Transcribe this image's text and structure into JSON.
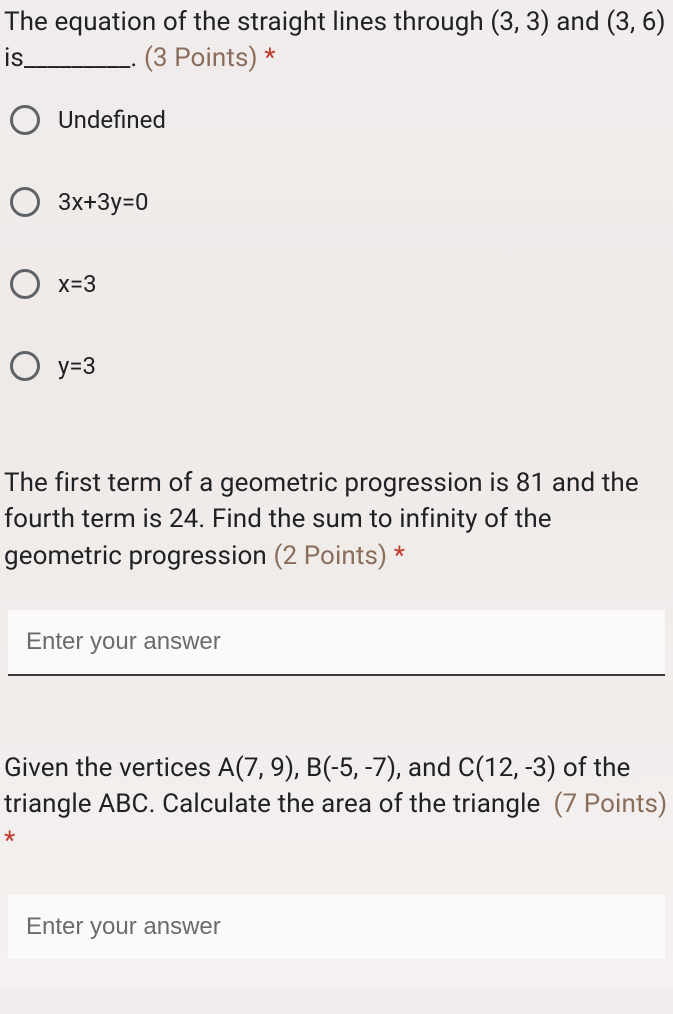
{
  "colors": {
    "text": "#202124",
    "points": "#8a6d5a",
    "required": "#c0392b",
    "radio_border": "#5f6368",
    "input_bg": "#fbfaf9",
    "input_border": "#3b3b3b",
    "placeholder": "#6b6b6b",
    "page_bg": "#f0eceb"
  },
  "typography": {
    "question_fontsize": 26,
    "option_fontsize": 24,
    "input_fontsize": 24,
    "font_family": "Roboto"
  },
  "questions": [
    {
      "id": "q1",
      "type": "radio",
      "text": "The equation of the straight lines through (3, 3) and (3, 6) is_________.",
      "points_label": "(3 Points)",
      "required": true,
      "options": [
        {
          "label": "Undefined"
        },
        {
          "label": "3x+3y=0"
        },
        {
          "label": "x=3"
        },
        {
          "label": "y=3"
        }
      ]
    },
    {
      "id": "q2",
      "type": "text",
      "text": "The first term of a geometric progression is 81 and the fourth term is 24. Find the sum to infinity of the geometric progression",
      "points_label": "(2 Points)",
      "required": true,
      "placeholder": "Enter your answer"
    },
    {
      "id": "q3",
      "type": "text",
      "text": "Given the vertices A(7, 9), B(-5, -7), and C(12, -3) of the triangle ABC. Calculate the area of the triangle",
      "points_label": "(7 Points)",
      "required": true,
      "placeholder": "Enter your answer"
    }
  ]
}
